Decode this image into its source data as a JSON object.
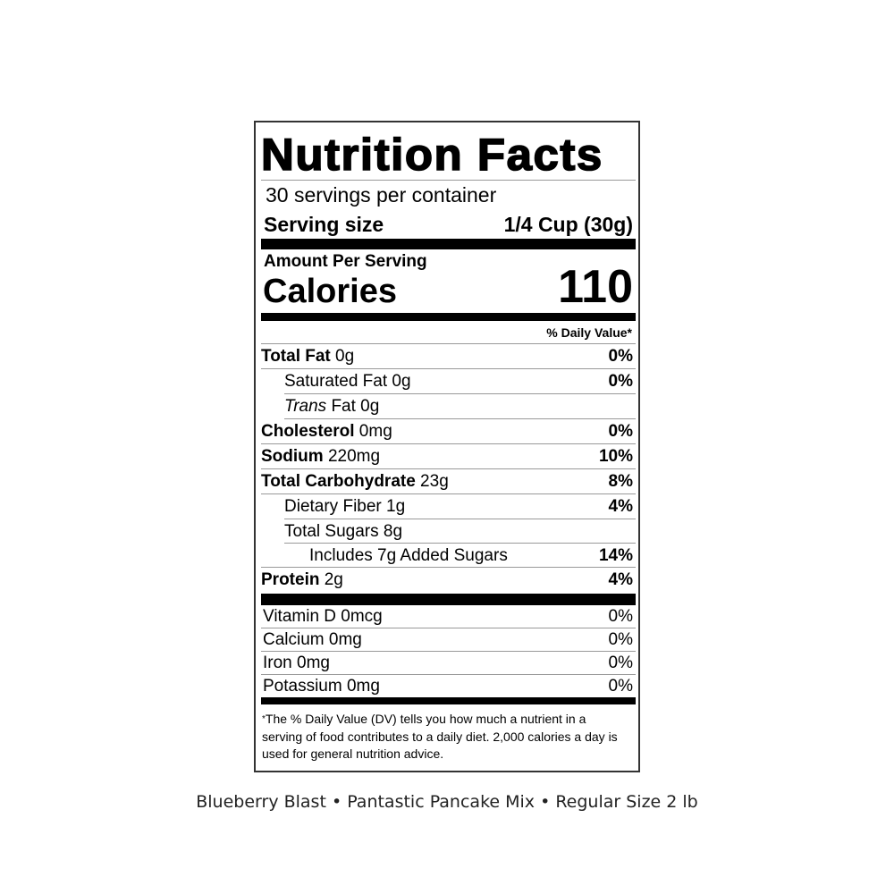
{
  "label": {
    "title": "Nutrition Facts",
    "servings_per_container": "30 servings per container",
    "serving_size_label": "Serving size",
    "serving_size_value": "1/4 Cup (30g)",
    "amount_per_serving": "Amount Per Serving",
    "calories_label": "Calories",
    "calories_value": "110",
    "daily_value_header": "% Daily Value*",
    "nutrients": [
      {
        "name": "Total Fat",
        "amount": " 0g",
        "dv": "0%"
      },
      {
        "name": "Saturated Fat 0g",
        "amount": "",
        "dv": "0%"
      },
      {
        "name": "Trans",
        "amount": " Fat 0g",
        "dv": ""
      },
      {
        "name": "Cholesterol",
        "amount": " 0mg",
        "dv": "0%"
      },
      {
        "name": "Sodium",
        "amount": " 220mg",
        "dv": "10%"
      },
      {
        "name": "Total Carbohydrate",
        "amount": " 23g",
        "dv": "8%"
      },
      {
        "name": "Dietary Fiber 1g",
        "amount": "",
        "dv": "4%"
      },
      {
        "name": "Total Sugars 8g",
        "amount": "",
        "dv": ""
      },
      {
        "name": "Includes 7g Added Sugars",
        "amount": "",
        "dv": "14%"
      },
      {
        "name": "Protein",
        "amount": " 2g",
        "dv": "4%"
      }
    ],
    "vitamins": [
      {
        "name": "Vitamin D 0mcg",
        "dv": "0%"
      },
      {
        "name": "Calcium 0mg",
        "dv": "0%"
      },
      {
        "name": "Iron 0mg",
        "dv": "0%"
      },
      {
        "name": "Potassium 0mg",
        "dv": "0%"
      }
    ],
    "footnote_star": "*",
    "footnote": "The % Daily Value (DV) tells you how much a nutrient in a serving of food contributes to a daily diet. 2,000 calories a day is used for general nutrition advice."
  },
  "caption": "Blueberry Blast • Pantastic Pancake Mix • Regular Size 2 lb"
}
